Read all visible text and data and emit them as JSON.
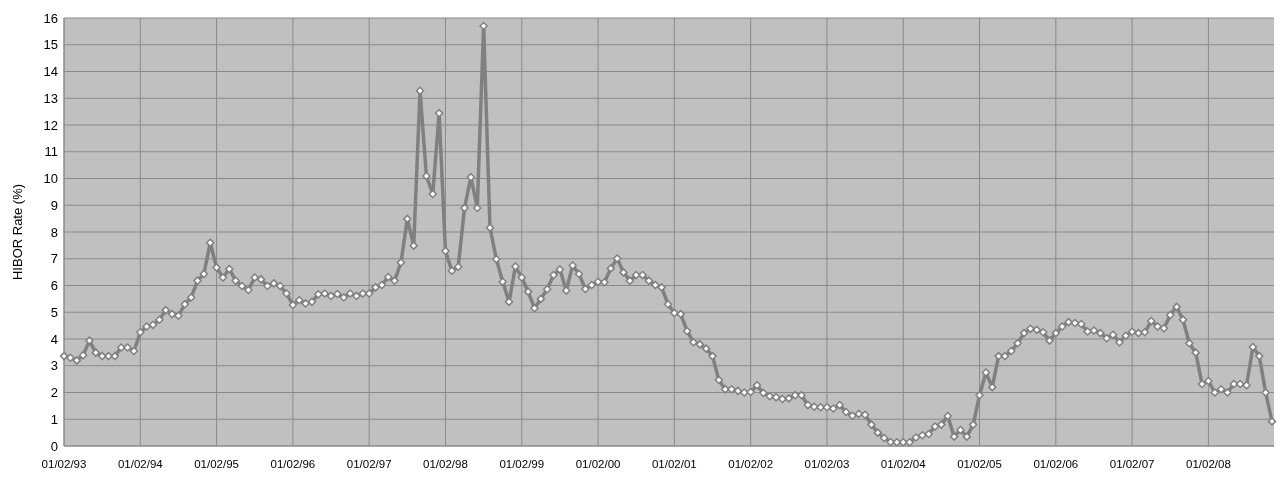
{
  "chart_data": {
    "type": "line",
    "ylabel": "HIBOR Rate (%)",
    "categories": [
      "01/02/93",
      null,
      null,
      null,
      null,
      null,
      null,
      null,
      null,
      null,
      null,
      null,
      "01/02/94",
      null,
      null,
      null,
      null,
      null,
      null,
      null,
      null,
      null,
      null,
      null,
      "01/02/95",
      null,
      null,
      null,
      null,
      null,
      null,
      null,
      null,
      null,
      null,
      null,
      "01/02/96",
      null,
      null,
      null,
      null,
      null,
      null,
      null,
      null,
      null,
      null,
      null,
      "01/02/97",
      null,
      null,
      null,
      null,
      null,
      null,
      null,
      null,
      null,
      null,
      null,
      "01/02/98",
      null,
      null,
      null,
      null,
      null,
      null,
      null,
      null,
      null,
      null,
      null,
      "01/02/99",
      null,
      null,
      null,
      null,
      null,
      null,
      null,
      null,
      null,
      null,
      null,
      "01/02/00",
      null,
      null,
      null,
      null,
      null,
      null,
      null,
      null,
      null,
      null,
      null,
      "01/02/01",
      null,
      null,
      null,
      null,
      null,
      null,
      null,
      null,
      null,
      null,
      null,
      "01/02/02",
      null,
      null,
      null,
      null,
      null,
      null,
      null,
      null,
      null,
      null,
      null,
      "01/02/03",
      null,
      null,
      null,
      null,
      null,
      null,
      null,
      null,
      null,
      null,
      null,
      "01/02/04",
      null,
      null,
      null,
      null,
      null,
      null,
      null,
      null,
      null,
      null,
      null,
      "01/02/05",
      null,
      null,
      null,
      null,
      null,
      null,
      null,
      null,
      null,
      null,
      null,
      "01/02/06",
      null,
      null,
      null,
      null,
      null,
      null,
      null,
      null,
      null,
      null,
      null,
      "01/02/07",
      null,
      null,
      null,
      null,
      null,
      null,
      null,
      null,
      null,
      null,
      null,
      "01/02/08",
      null,
      null,
      null,
      null,
      null,
      null,
      null,
      null,
      null,
      null
    ],
    "series": [
      {
        "color": "#808080",
        "values": [
          3.36,
          3.3,
          3.2,
          3.39,
          3.94,
          3.49,
          3.36,
          3.36,
          3.36,
          3.68,
          3.68,
          3.55,
          4.25,
          4.47,
          4.53,
          4.72,
          5.08,
          4.93,
          4.87,
          5.3,
          5.55,
          6.18,
          6.43,
          7.6,
          6.67,
          6.3,
          6.62,
          6.18,
          5.98,
          5.83,
          6.3,
          6.23,
          5.98,
          6.08,
          5.98,
          5.7,
          5.27,
          5.45,
          5.33,
          5.39,
          5.67,
          5.7,
          5.61,
          5.68,
          5.55,
          5.7,
          5.61,
          5.7,
          5.7,
          5.93,
          6.02,
          6.32,
          6.18,
          6.86,
          8.49,
          7.49,
          13.28,
          10.09,
          9.42,
          12.44,
          7.29,
          6.55,
          6.7,
          8.9,
          10.05,
          8.9,
          15.7,
          8.16,
          6.98,
          6.14,
          5.39,
          6.71,
          6.3,
          5.77,
          5.15,
          5.5,
          5.86,
          6.39,
          6.6,
          5.81,
          6.75,
          6.43,
          5.87,
          6.02,
          6.14,
          6.12,
          6.64,
          7.01,
          6.49,
          6.18,
          6.39,
          6.39,
          6.18,
          6.02,
          5.93,
          5.3,
          4.97,
          4.93,
          4.3,
          3.88,
          3.8,
          3.64,
          3.36,
          2.47,
          2.12,
          2.12,
          2.06,
          2.0,
          2.02,
          2.27,
          1.98,
          1.86,
          1.82,
          1.76,
          1.78,
          1.9,
          1.9,
          1.53,
          1.47,
          1.45,
          1.45,
          1.4,
          1.53,
          1.27,
          1.13,
          1.2,
          1.17,
          0.8,
          0.5,
          0.3,
          0.15,
          0.14,
          0.14,
          0.14,
          0.32,
          0.4,
          0.45,
          0.73,
          0.8,
          1.12,
          0.35,
          0.6,
          0.35,
          0.8,
          1.9,
          2.75,
          2.2,
          3.36,
          3.36,
          3.55,
          3.84,
          4.22,
          4.38,
          4.34,
          4.25,
          3.94,
          4.22,
          4.47,
          4.63,
          4.6,
          4.56,
          4.28,
          4.32,
          4.22,
          4.03,
          4.16,
          3.88,
          4.12,
          4.27,
          4.22,
          4.25,
          4.67,
          4.47,
          4.4,
          4.9,
          5.2,
          4.72,
          3.84,
          3.49,
          2.32,
          2.43,
          2.0,
          2.12,
          2.0,
          2.32,
          2.32,
          2.27,
          3.7,
          3.36,
          2.0,
          0.92
        ]
      }
    ],
    "ylim": [
      0,
      16
    ],
    "yticks": [
      0,
      1,
      2,
      3,
      4,
      5,
      6,
      7,
      8,
      9,
      10,
      11,
      12,
      13,
      14,
      15,
      16
    ],
    "grid": true,
    "marker": "diamond",
    "line_style": "solid"
  }
}
